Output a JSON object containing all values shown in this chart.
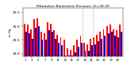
{
  "title": "Milwaukee Barometric Pressure: Hi=30.29",
  "ylabel_left": "in Hg",
  "background_color": "#ffffff",
  "plot_bg": "#ffffff",
  "ylim": [
    28.9,
    30.65
  ],
  "yticks": [
    29.0,
    29.5,
    30.0,
    30.5
  ],
  "high_color": "#ff0000",
  "low_color": "#0000cc",
  "dashed_line_x": [
    17.5,
    20.5
  ],
  "highs": [
    30.1,
    30.05,
    29.9,
    30.25,
    30.3,
    29.8,
    29.75,
    30.15,
    30.1,
    29.85,
    29.7,
    29.6,
    29.5,
    29.2,
    29.15,
    29.3,
    29.5,
    29.65,
    29.4,
    29.35,
    29.55,
    29.6,
    29.7,
    29.8,
    29.9,
    30.0,
    30.05,
    29.9,
    29.85,
    30.05
  ],
  "lows": [
    29.8,
    29.75,
    29.55,
    29.95,
    30.0,
    29.5,
    29.5,
    29.85,
    29.8,
    29.55,
    29.4,
    29.3,
    28.95,
    28.95,
    28.95,
    29.05,
    29.25,
    29.4,
    29.1,
    29.1,
    29.3,
    29.35,
    29.45,
    29.55,
    29.65,
    29.75,
    29.8,
    29.65,
    29.6,
    29.8
  ],
  "x_tick_labels": [
    "1",
    "3",
    "5",
    "7",
    "9",
    "11",
    "13",
    "15",
    "17",
    "19",
    "21",
    "23",
    "25",
    "27",
    "29"
  ],
  "x_tick_positions": [
    0,
    2,
    4,
    6,
    8,
    10,
    12,
    14,
    16,
    18,
    20,
    22,
    24,
    26,
    28
  ]
}
